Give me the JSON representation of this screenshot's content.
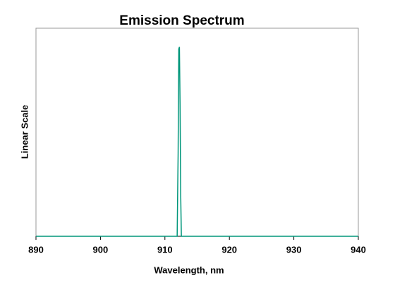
{
  "chart_data": {
    "type": "line",
    "title": "Emission Spectrum",
    "x_label": "Wavelength, nm",
    "y_label": "Linear Scale",
    "x": [
      890,
      911.9,
      912.05,
      912.15,
      912.25,
      912.35,
      912.45,
      912.55,
      912.7,
      940
    ],
    "series": [
      {
        "name": "Emission",
        "color": "#00967a",
        "values": [
          0,
          0,
          0.4,
          0.9,
          0.91,
          0.63,
          0.2,
          0,
          0,
          0
        ]
      }
    ],
    "xlim": [
      890,
      940
    ],
    "xticks": [
      890,
      900,
      910,
      920,
      930,
      940
    ],
    "ylim": [
      0,
      1
    ]
  }
}
